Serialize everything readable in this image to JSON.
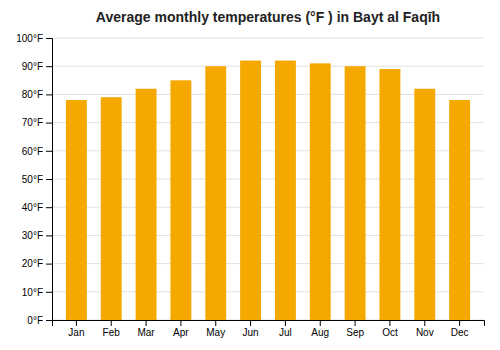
{
  "chart_data": {
    "type": "bar",
    "title": "Average monthly temperatures (°F ) in Bayt al Faqīh",
    "categories": [
      "Jan",
      "Feb",
      "Mar",
      "Apr",
      "May",
      "Jun",
      "Jul",
      "Aug",
      "Sep",
      "Oct",
      "Nov",
      "Dec"
    ],
    "values": [
      78,
      79,
      82,
      85,
      90,
      92,
      92,
      91,
      90,
      89,
      82,
      78
    ],
    "color": "#F5A800",
    "ylim": [
      0,
      100
    ],
    "yticks": [
      {
        "value": 0,
        "label": "0°F"
      },
      {
        "value": 10,
        "label": "10°F"
      },
      {
        "value": 20,
        "label": "20°F"
      },
      {
        "value": 30,
        "label": "30°F"
      },
      {
        "value": 40,
        "label": "40°F"
      },
      {
        "value": 50,
        "label": "50°F"
      },
      {
        "value": 60,
        "label": "60°F"
      },
      {
        "value": 70,
        "label": "70°F"
      },
      {
        "value": 80,
        "label": "80°F"
      },
      {
        "value": 90,
        "label": "90°F"
      },
      {
        "value": 100,
        "label": "100°F"
      }
    ],
    "grid": true
  }
}
